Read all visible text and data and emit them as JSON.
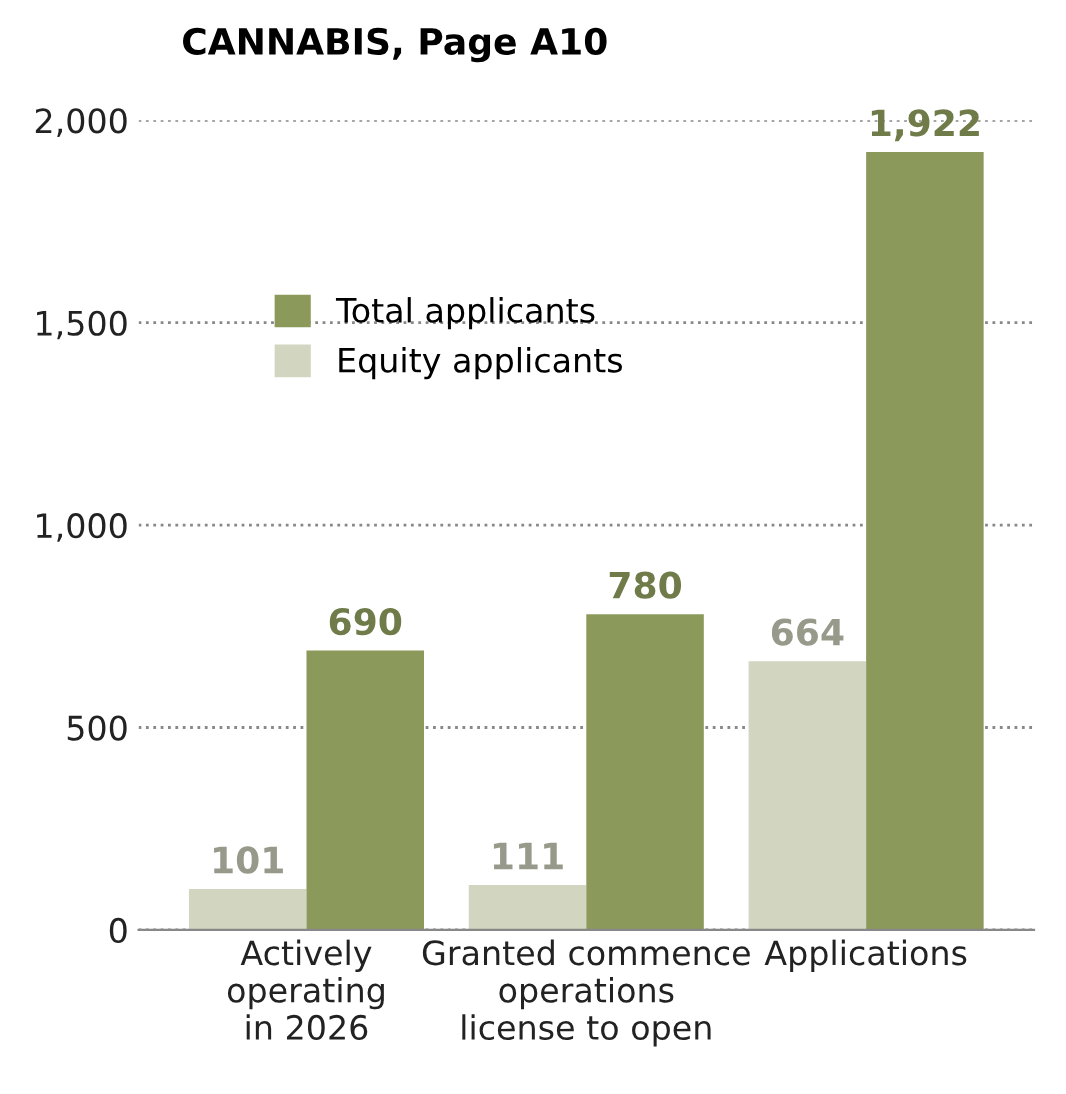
{
  "chart_data": {
    "type": "bar",
    "title": "CANNABIS, Page A10",
    "categories": [
      "Actively\noperating\nin 2026",
      "Granted commence\noperations\nlicense to open",
      "Applications"
    ],
    "series": [
      {
        "name": "Equity applicants",
        "color": "#d2d5bf",
        "values": [
          101,
          111,
          664
        ],
        "value_labels": [
          "101",
          "111",
          "664"
        ]
      },
      {
        "name": "Total applicants",
        "color": "#8b9a5b",
        "values": [
          690,
          780,
          1922
        ],
        "value_labels": [
          "690",
          "780",
          "1,922"
        ]
      }
    ],
    "ylim": [
      0,
      2000
    ],
    "yticks": [
      0,
      500,
      {
        "value": 1000,
        "label": "1,000"
      },
      {
        "value": 1500,
        "label": "1,500"
      },
      {
        "value": 2000,
        "label": "2,000"
      }
    ],
    "grid": "y",
    "legend": "top left"
  }
}
